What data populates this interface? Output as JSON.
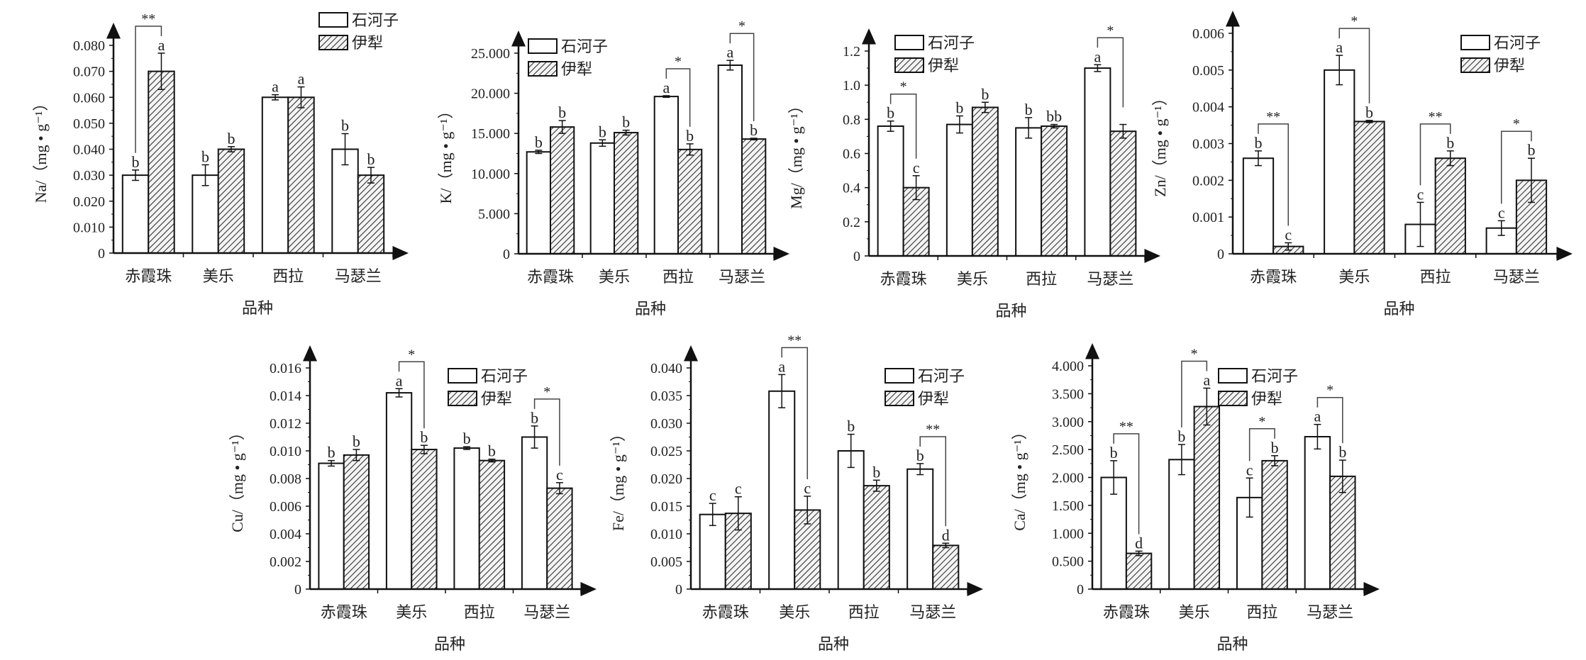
{
  "chart_data": [
    {
      "type": "bar",
      "id": "na",
      "title": "",
      "xlabel": "品种",
      "ylabel": "Na/（mg • g⁻¹）",
      "ylim": [
        0,
        0.08
      ],
      "yticks": [
        "0",
        "0.010",
        "0.020",
        "0.030",
        "0.040",
        "0.050",
        "0.060",
        "0.070",
        "0.080"
      ],
      "categories": [
        "赤霞珠",
        "美乐",
        "西拉",
        "马瑟兰"
      ],
      "legend_placement": "top-right",
      "series": [
        {
          "name": "石河子",
          "values": [
            0.03,
            0.03,
            0.06,
            0.04
          ],
          "errors": [
            0.002,
            0.004,
            0.001,
            0.006
          ],
          "letters": [
            "b",
            "b",
            "a",
            "b"
          ]
        },
        {
          "name": "伊犁",
          "values": [
            0.07,
            0.04,
            0.06,
            0.03
          ],
          "errors": [
            0.007,
            0.001,
            0.004,
            0.003
          ],
          "letters": [
            "a",
            "b",
            "a",
            "b"
          ]
        }
      ],
      "significance": [
        "**",
        "",
        "",
        ""
      ]
    },
    {
      "type": "bar",
      "id": "k",
      "title": "",
      "xlabel": "品种",
      "ylabel": "K/（mg • g⁻¹）",
      "ylim": [
        0,
        25
      ],
      "yticks": [
        "0",
        "5.000",
        "10.000",
        "15.000",
        "20.000",
        "25.000"
      ],
      "categories": [
        "赤霞珠",
        "美乐",
        "西拉",
        "马瑟兰"
      ],
      "legend_placement": "top-left",
      "series": [
        {
          "name": "石河子",
          "values": [
            12.7,
            13.8,
            19.6,
            23.5
          ],
          "errors": [
            0.2,
            0.4,
            0.1,
            0.6
          ],
          "letters": [
            "b",
            "b",
            "a",
            "a"
          ]
        },
        {
          "name": "伊犁",
          "values": [
            15.8,
            15.1,
            13.0,
            14.3
          ],
          "errors": [
            0.8,
            0.3,
            0.7,
            0.1
          ],
          "letters": [
            "b",
            "b",
            "b",
            "b"
          ]
        }
      ],
      "significance": [
        "",
        "",
        "*",
        "*"
      ]
    },
    {
      "type": "bar",
      "id": "mg",
      "title": "",
      "xlabel": "品种",
      "ylabel": "Mg/（mg • g⁻¹）",
      "ylim": [
        0,
        1.2
      ],
      "yticks": [
        "0",
        "0.2",
        "0.4",
        "0.6",
        "0.8",
        "1.0",
        "1.2"
      ],
      "categories": [
        "赤霞珠",
        "美乐",
        "西拉",
        "马瑟兰"
      ],
      "legend_placement": "top-left",
      "series": [
        {
          "name": "石河子",
          "values": [
            0.76,
            0.77,
            0.75,
            1.1
          ],
          "errors": [
            0.03,
            0.05,
            0.06,
            0.02
          ],
          "letters": [
            "b",
            "b",
            "b",
            "a"
          ]
        },
        {
          "name": "伊犁",
          "values": [
            0.4,
            0.87,
            0.76,
            0.73
          ],
          "errors": [
            0.07,
            0.03,
            0.01,
            0.04
          ],
          "letters": [
            "c",
            "b",
            "bb",
            ""
          ]
        }
      ],
      "significance": [
        "*",
        "",
        "",
        "*"
      ]
    },
    {
      "type": "bar",
      "id": "zn",
      "title": "",
      "xlabel": "品种",
      "ylabel": "Zn/（mg • g⁻¹）",
      "ylim": [
        0,
        0.006
      ],
      "yticks": [
        "0",
        "0.001",
        "0.002",
        "0.003",
        "0.004",
        "0.005",
        "0.006"
      ],
      "categories": [
        "赤霞珠",
        "美乐",
        "西拉",
        "马瑟兰"
      ],
      "legend_placement": "top-right",
      "series": [
        {
          "name": "石河子",
          "values": [
            0.0026,
            0.005,
            0.0008,
            0.0007
          ],
          "errors": [
            0.0002,
            0.0004,
            0.0006,
            0.0002
          ],
          "letters": [
            "b",
            "a",
            "c",
            "c"
          ]
        },
        {
          "name": "伊犁",
          "values": [
            0.0002,
            0.0036,
            0.0026,
            0.002
          ],
          "errors": [
            0.0001,
            3e-05,
            0.0002,
            0.0006
          ],
          "letters": [
            "c",
            "b",
            "b",
            "b"
          ]
        }
      ],
      "significance": [
        "**",
        "*",
        "**",
        "*"
      ]
    },
    {
      "type": "bar",
      "id": "cu",
      "title": "",
      "xlabel": "品种",
      "ylabel": "Cu/（mg • g⁻¹）",
      "ylim": [
        0,
        0.016
      ],
      "yticks": [
        "0",
        "0.002",
        "0.004",
        "0.006",
        "0.008",
        "0.010",
        "0.012",
        "0.014",
        "0.016"
      ],
      "categories": [
        "赤霞珠",
        "美乐",
        "西拉",
        "马瑟兰"
      ],
      "legend_placement": "top-center",
      "series": [
        {
          "name": "石河子",
          "values": [
            0.0091,
            0.0142,
            0.0102,
            0.011
          ],
          "errors": [
            0.0002,
            0.0003,
            0.0001,
            0.0008
          ],
          "letters": [
            "b",
            "a",
            "b",
            "b"
          ]
        },
        {
          "name": "伊犁",
          "values": [
            0.0097,
            0.0101,
            0.0093,
            0.0073
          ],
          "errors": [
            0.0004,
            0.0003,
            0.0001,
            0.0004
          ],
          "letters": [
            "b",
            "b",
            "b",
            "c"
          ]
        }
      ],
      "significance": [
        "",
        "*",
        "",
        "*"
      ]
    },
    {
      "type": "bar",
      "id": "fe",
      "title": "",
      "xlabel": "品种",
      "ylabel": "Fe/（mg • g⁻¹）",
      "ylim": [
        0,
        0.04
      ],
      "yticks": [
        "0",
        "0.005",
        "0.010",
        "0.015",
        "0.020",
        "0.025",
        "0.030",
        "0.035",
        "0.040"
      ],
      "categories": [
        "赤霞珠",
        "美乐",
        "西拉",
        "马瑟兰"
      ],
      "legend_placement": "top-right",
      "series": [
        {
          "name": "石河子",
          "values": [
            0.0135,
            0.0358,
            0.025,
            0.0217
          ],
          "errors": [
            0.002,
            0.003,
            0.003,
            0.001
          ],
          "letters": [
            "c",
            "a",
            "b",
            "b"
          ]
        },
        {
          "name": "伊犁",
          "values": [
            0.0137,
            0.0143,
            0.0187,
            0.0079
          ],
          "errors": [
            0.003,
            0.0025,
            0.001,
            0.0004
          ],
          "letters": [
            "c",
            "c",
            "b",
            "d"
          ]
        }
      ],
      "significance": [
        "",
        "**",
        "",
        "**"
      ]
    },
    {
      "type": "bar",
      "id": "ca",
      "title": "",
      "xlabel": "品种",
      "ylabel": "Ca/（mg • g⁻¹）",
      "ylim": [
        0,
        4
      ],
      "yticks": [
        "0",
        "0.500",
        "1.000",
        "1.500",
        "2.000",
        "2.500",
        "3.000",
        "3.500",
        "4.000"
      ],
      "categories": [
        "赤霞珠",
        "美乐",
        "西拉",
        "马瑟兰"
      ],
      "legend_placement": "top-center",
      "series": [
        {
          "name": "石河子",
          "values": [
            2.0,
            2.32,
            1.64,
            2.73
          ],
          "errors": [
            0.3,
            0.27,
            0.35,
            0.22
          ],
          "letters": [
            "b",
            "b",
            "c",
            "a"
          ]
        },
        {
          "name": "伊犁",
          "values": [
            0.64,
            3.27,
            2.3,
            2.02
          ],
          "errors": [
            0.04,
            0.33,
            0.09,
            0.29
          ],
          "letters": [
            "d",
            "a",
            "b",
            "b"
          ]
        }
      ],
      "significance": [
        "**",
        "*",
        "*",
        "*"
      ]
    }
  ]
}
